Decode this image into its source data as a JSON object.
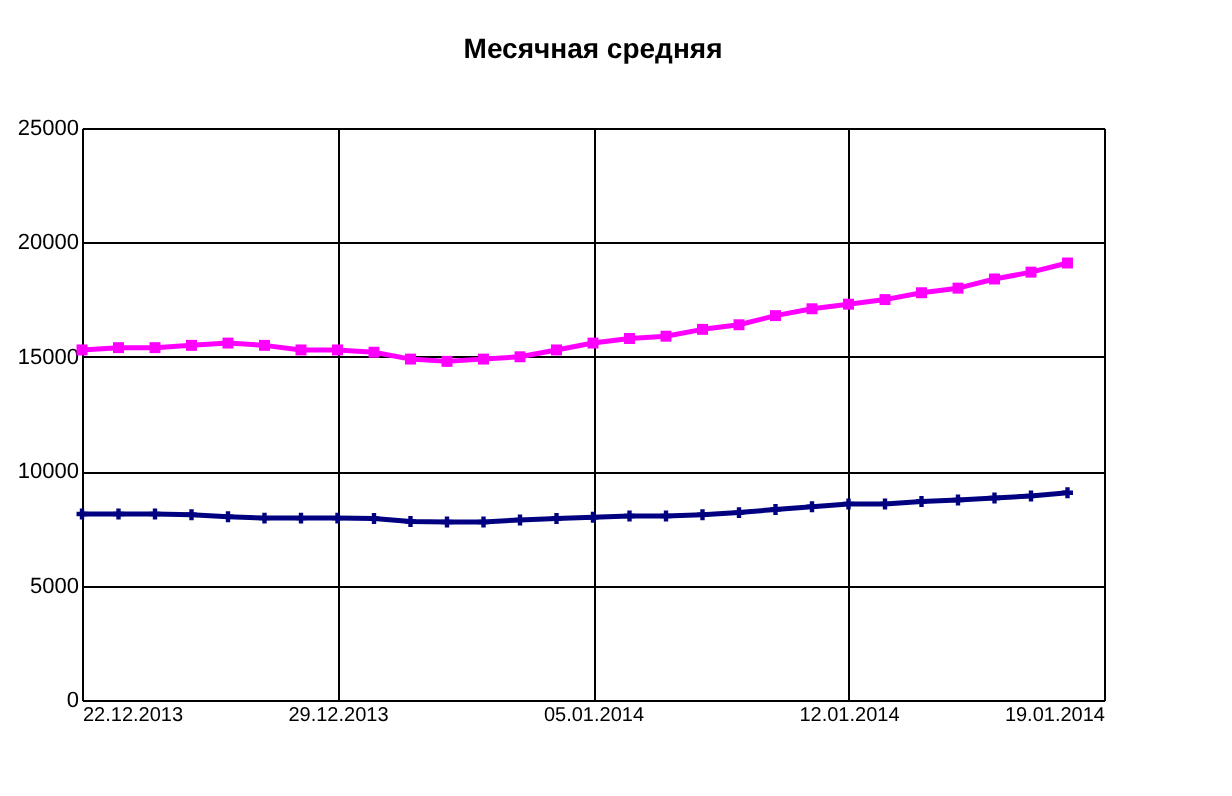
{
  "chart_data": {
    "type": "line",
    "title": "Месячная средняя",
    "x": [
      "2013-12-22",
      "2013-12-23",
      "2013-12-24",
      "2013-12-25",
      "2013-12-26",
      "2013-12-27",
      "2013-12-28",
      "2013-12-29",
      "2013-12-30",
      "2013-12-31",
      "2014-01-01",
      "2014-01-02",
      "2014-01-03",
      "2014-01-04",
      "2014-01-05",
      "2014-01-06",
      "2014-01-07",
      "2014-01-08",
      "2014-01-09",
      "2014-01-10",
      "2014-01-11",
      "2014-01-12",
      "2014-01-13",
      "2014-01-14",
      "2014-01-15",
      "2014-01-16",
      "2014-01-17",
      "2014-01-18"
    ],
    "series": [
      {
        "color": "#ff00ff",
        "marker": "square",
        "values": [
          15300,
          15400,
          15400,
          15500,
          15600,
          15500,
          15300,
          15300,
          15200,
          14900,
          14800,
          14900,
          15000,
          15300,
          15600,
          15800,
          15900,
          16200,
          16400,
          16800,
          17100,
          17300,
          17500,
          17800,
          18000,
          18400,
          18700,
          19100
        ]
      },
      {
        "color": "#000080",
        "marker": "cross",
        "values": [
          8130,
          8130,
          8130,
          8100,
          8010,
          7950,
          7950,
          7950,
          7930,
          7800,
          7780,
          7780,
          7870,
          7930,
          7990,
          8040,
          8040,
          8100,
          8190,
          8330,
          8450,
          8570,
          8570,
          8680,
          8740,
          8830,
          8920,
          9060
        ]
      }
    ],
    "xlim": [
      "2013-12-22",
      "2014-01-19"
    ],
    "xticks": [
      {
        "value": "2013-12-22",
        "label": "22.12.2013"
      },
      {
        "value": "2013-12-29",
        "label": "29.12.2013"
      },
      {
        "value": "2014-01-05",
        "label": "05.01.2014"
      },
      {
        "value": "2014-01-12",
        "label": "12.01.2014"
      },
      {
        "value": "2014-01-19",
        "label": "19.01.2014"
      }
    ],
    "ylim": [
      0,
      25000
    ],
    "yticks": [
      0,
      5000,
      10000,
      15000,
      20000,
      25000
    ],
    "grid": true,
    "line_style": "solid"
  }
}
